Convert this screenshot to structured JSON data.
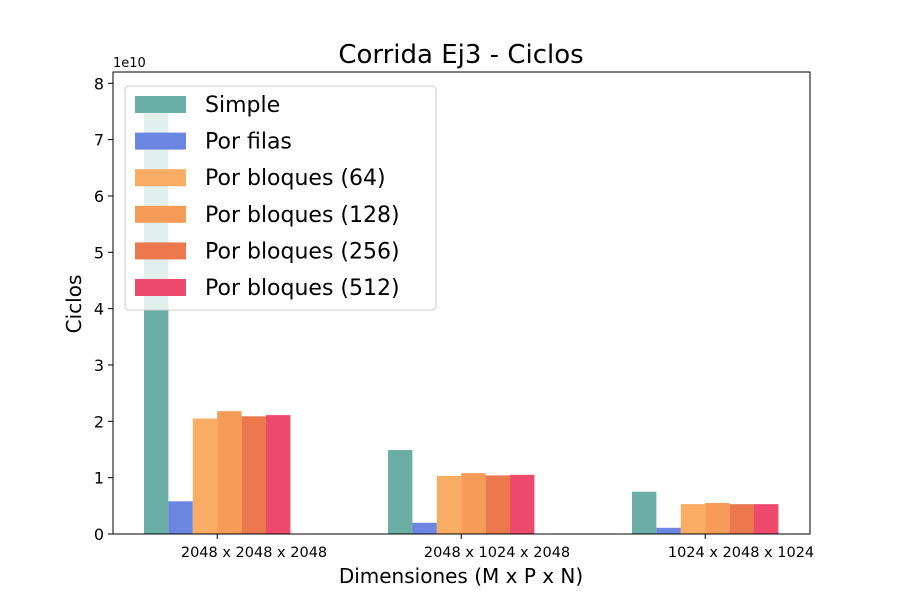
{
  "chart_data": {
    "type": "bar",
    "title": "Corrida Ej3 - Ciclos",
    "xlabel": "Dimensiones (M x P x N)",
    "ylabel": "Ciclos",
    "y_multiplier_label": "1e10",
    "y_scale": 10000000000,
    "ylim": [
      0,
      8.2
    ],
    "y_ticks": [
      0,
      1,
      2,
      3,
      4,
      5,
      6,
      7,
      8
    ],
    "y_tick_labels": [
      "0",
      "1",
      "2",
      "3",
      "4",
      "5",
      "6",
      "7",
      "8"
    ],
    "categories": [
      "2048 x 2048 x 2048",
      "2048 x 1024 x 2048",
      "1024 x 2048 x 1024"
    ],
    "series": [
      {
        "name": "Simple",
        "color": "#6aaea6",
        "values": [
          7.75,
          1.49,
          0.75
        ]
      },
      {
        "name": "Por filas",
        "color": "#6b86e0",
        "values": [
          0.58,
          0.2,
          0.11
        ]
      },
      {
        "name": "Por bloques (64)",
        "color": "#f9ac63",
        "values": [
          2.05,
          1.03,
          0.53
        ]
      },
      {
        "name": "Por bloques (128)",
        "color": "#f79b59",
        "values": [
          2.18,
          1.08,
          0.55
        ]
      },
      {
        "name": "Por bloques (256)",
        "color": "#ec784e",
        "values": [
          2.09,
          1.04,
          0.53
        ]
      },
      {
        "name": "Por bloques (512)",
        "color": "#ee4a6e",
        "values": [
          2.11,
          1.05,
          0.53
        ]
      }
    ],
    "legend_position": "upper-left",
    "grid": false
  }
}
